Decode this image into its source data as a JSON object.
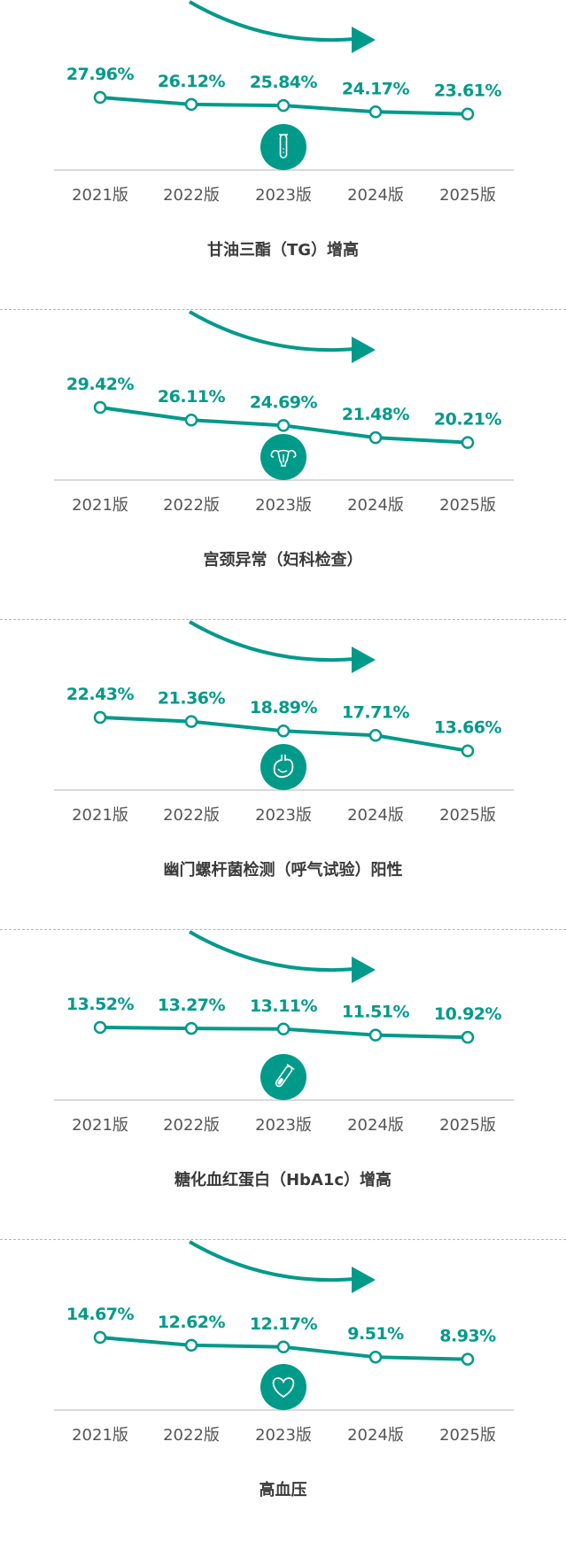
{
  "chart_data": [
    {
      "type": "line",
      "title": "甘油三酯（TG）增高",
      "icon": "test-tube-icon",
      "categories": [
        "2021版",
        "2022版",
        "2023版",
        "2024版",
        "2025版"
      ],
      "values": [
        27.96,
        26.12,
        25.84,
        24.17,
        23.61
      ],
      "labels": [
        "27.96%",
        "26.12%",
        "25.84%",
        "24.17%",
        "23.61%"
      ]
    },
    {
      "type": "line",
      "title": "宫颈异常（妇科检查）",
      "icon": "uterus-icon",
      "categories": [
        "2021版",
        "2022版",
        "2023版",
        "2024版",
        "2025版"
      ],
      "values": [
        29.42,
        26.11,
        24.69,
        21.48,
        20.21
      ],
      "labels": [
        "29.42%",
        "26.11%",
        "24.69%",
        "21.48%",
        "20.21%"
      ]
    },
    {
      "type": "line",
      "title": "幽门螺杆菌检测（呼气试验）阳性",
      "icon": "stomach-icon",
      "categories": [
        "2021版",
        "2022版",
        "2023版",
        "2024版",
        "2025版"
      ],
      "values": [
        22.43,
        21.36,
        18.89,
        17.71,
        13.66
      ],
      "labels": [
        "22.43%",
        "21.36%",
        "18.89%",
        "17.71%",
        "13.66%"
      ]
    },
    {
      "type": "line",
      "title": "糖化血红蛋白（HbA1c）增高",
      "icon": "blood-tube-icon",
      "categories": [
        "2021版",
        "2022版",
        "2023版",
        "2024版",
        "2025版"
      ],
      "values": [
        13.52,
        13.27,
        13.11,
        11.51,
        10.92
      ],
      "labels": [
        "13.52%",
        "13.27%",
        "13.11%",
        "11.51%",
        "10.92%"
      ]
    },
    {
      "type": "line",
      "title": "高血压",
      "icon": "heart-icon",
      "categories": [
        "2021版",
        "2022版",
        "2023版",
        "2024版",
        "2025版"
      ],
      "values": [
        14.67,
        12.62,
        12.17,
        9.51,
        8.93
      ],
      "labels": [
        "14.67%",
        "12.62%",
        "12.17%",
        "9.51%",
        "8.93%"
      ]
    }
  ],
  "colors": {
    "accent": "#009a8a",
    "axis": "#d9d9d9",
    "category_text": "#555555",
    "title_text": "#3a3a3a"
  }
}
